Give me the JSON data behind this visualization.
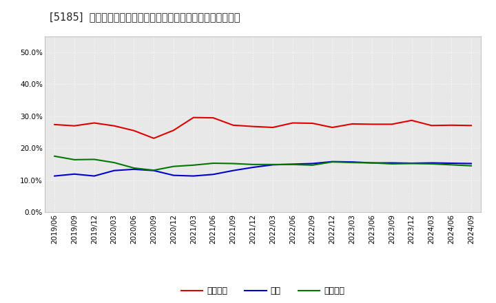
{
  "title": "[5185]  売上債権、在庫、買入債務の総資産に対する比率の推移",
  "x_labels": [
    "2019/06",
    "2019/09",
    "2019/12",
    "2020/03",
    "2020/06",
    "2020/09",
    "2020/12",
    "2021/03",
    "2021/06",
    "2021/09",
    "2021/12",
    "2022/03",
    "2022/06",
    "2022/09",
    "2022/12",
    "2023/03",
    "2023/06",
    "2023/09",
    "2023/12",
    "2024/03",
    "2024/06",
    "2024/09"
  ],
  "urikake": [
    0.274,
    0.27,
    0.279,
    0.27,
    0.255,
    0.231,
    0.256,
    0.296,
    0.295,
    0.272,
    0.268,
    0.265,
    0.279,
    0.278,
    0.265,
    0.276,
    0.275,
    0.275,
    0.287,
    0.271,
    0.272,
    0.271
  ],
  "zaiko": [
    0.113,
    0.119,
    0.113,
    0.13,
    0.134,
    0.13,
    0.115,
    0.113,
    0.118,
    0.13,
    0.14,
    0.148,
    0.15,
    0.152,
    0.158,
    0.157,
    0.154,
    0.154,
    0.153,
    0.154,
    0.153,
    0.152
  ],
  "kaiire": [
    0.175,
    0.164,
    0.165,
    0.155,
    0.138,
    0.131,
    0.143,
    0.147,
    0.153,
    0.152,
    0.149,
    0.149,
    0.149,
    0.147,
    0.157,
    0.155,
    0.154,
    0.151,
    0.152,
    0.151,
    0.148,
    0.145
  ],
  "urikake_color": "#dd0000",
  "zaiko_color": "#0000cc",
  "kaiire_color": "#007700",
  "legend_urikake": "売上債権",
  "legend_zaiko": "在庫",
  "legend_kaiire": "買入債務",
  "ylim": [
    0.0,
    0.55
  ],
  "yticks": [
    0.0,
    0.1,
    0.2,
    0.3,
    0.4,
    0.5
  ],
  "bg_color": "#ffffff",
  "plot_bg_color": "#e8e8e8",
  "grid_color": "#ffffff",
  "title_fontsize": 10.5,
  "legend_fontsize": 9,
  "tick_fontsize": 7.5
}
